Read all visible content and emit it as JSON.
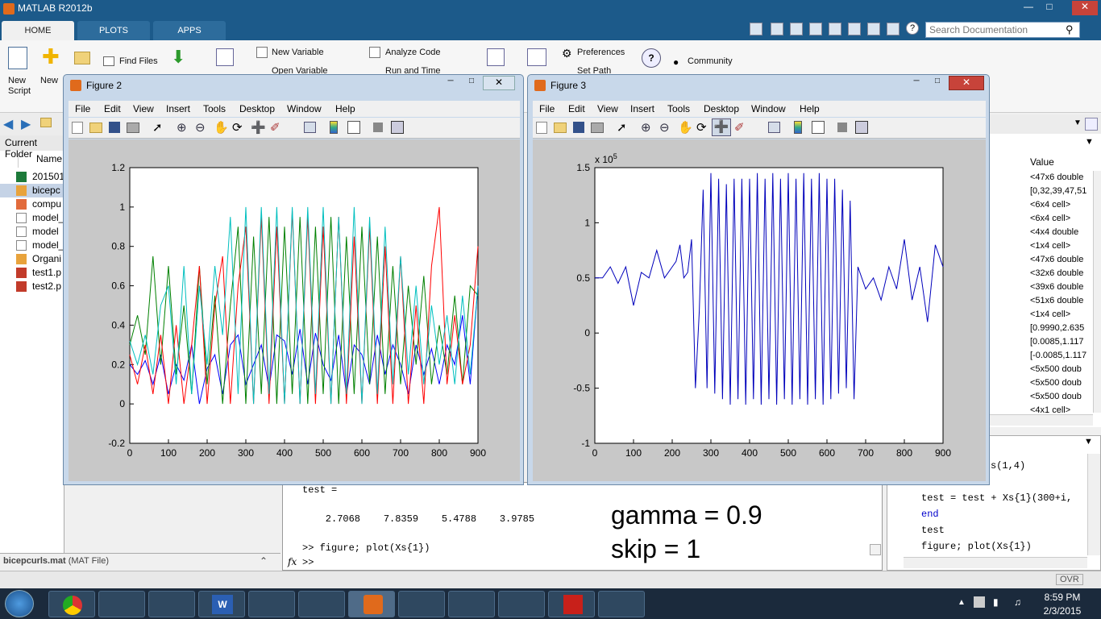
{
  "app": {
    "title": "MATLAB R2012b"
  },
  "tabs": [
    "HOME",
    "PLOTS",
    "APPS"
  ],
  "search": {
    "placeholder": "Search Documentation"
  },
  "ribbon": {
    "new_script": "New Script",
    "new": "New",
    "find_files": "Find Files",
    "new_variable": "New Variable",
    "open_variable": "Open Variable",
    "analyze_code": "Analyze Code",
    "run_and_time": "Run and Time",
    "preferences": "Preferences",
    "set_path": "Set Path",
    "community": "Community"
  },
  "current_folder": {
    "title": "Current Folder",
    "column": "Name",
    "items": [
      "201501",
      "bicepc",
      "compu",
      "model_",
      "model",
      "model_",
      "Organi",
      "test1.p",
      "test2.p"
    ]
  },
  "details": {
    "file": "bicepcurls.mat",
    "type": "(MAT File)"
  },
  "command_window": {
    "line1": "test =",
    "line2": "    2.7068    7.8359    5.4788    3.9785",
    "line3": ">> figure; plot(Xs{1})",
    "prompt": ">>",
    "fx": "fx"
  },
  "note": {
    "line1": "gamma = 0.9",
    "line2": "skip = 1"
  },
  "workspace": {
    "header": "Value",
    "values": [
      "<47x6 double",
      "[0,32,39,47,51",
      "<6x4 cell>",
      "<6x4 cell>",
      "<4x4 double",
      "<1x4 cell>",
      "<47x6 double",
      "<32x6 double",
      "<39x6 double",
      "<51x6 double",
      "<1x4 cell>",
      "[0.9990,2.635",
      "[0.0085,1.117",
      "[-0.0085,1.117",
      "<5x500 doub",
      "<5x500 doub",
      "<5x500 doub",
      "<4x1 cell>"
    ]
  },
  "history": {
    "lines": [
      "s(1,4)",
      "test = test + Xs{1}(300+i,",
      "end",
      "test",
      "figure; plot(Xs{1})"
    ]
  },
  "status": {
    "ovr": "OVR"
  },
  "clock": {
    "time": "8:59 PM",
    "date": "2/3/2015"
  },
  "figure_menu": [
    "File",
    "Edit",
    "View",
    "Insert",
    "Tools",
    "Desktop",
    "Window",
    "Help"
  ],
  "figure2": {
    "title": "Figure 2"
  },
  "figure3": {
    "title": "Figure 3"
  },
  "chart_data": [
    {
      "type": "line",
      "title": "",
      "xlabel": "",
      "ylabel": "",
      "xlim": [
        0,
        900
      ],
      "ylim": [
        -0.2,
        1.2
      ],
      "xticks": [
        0,
        100,
        200,
        300,
        400,
        500,
        600,
        700,
        800,
        900
      ],
      "yticks": [
        -0.2,
        0,
        0.2,
        0.4,
        0.6,
        0.8,
        1,
        1.2
      ],
      "series": [
        {
          "color": "#0000ff",
          "x": [
            0,
            20,
            40,
            60,
            80,
            100,
            120,
            140,
            160,
            180,
            200,
            220,
            240,
            260,
            280,
            300,
            320,
            340,
            360,
            380,
            400,
            420,
            440,
            460,
            480,
            500,
            520,
            540,
            560,
            580,
            600,
            620,
            640,
            660,
            680,
            700,
            720,
            740,
            760,
            780,
            800,
            820,
            840,
            860,
            880,
            900
          ],
          "y": [
            0.2,
            0.15,
            0.22,
            0.1,
            0.25,
            0.05,
            0.2,
            0.12,
            0.3,
            0,
            0.18,
            0.25,
            0.05,
            0.3,
            0.35,
            0.1,
            0.2,
            0.3,
            0.08,
            0.35,
            0.32,
            0.15,
            0.38,
            0.1,
            0.36,
            0.2,
            0.12,
            0.35,
            0.05,
            0.3,
            0.25,
            0.1,
            0.35,
            0.15,
            0.3,
            0.2,
            0.05,
            0.3,
            0.15,
            0.28,
            0.1,
            0.3,
            0.2,
            0.45,
            0.1,
            0.6
          ]
        },
        {
          "color": "#008000",
          "x": [
            0,
            20,
            40,
            60,
            80,
            100,
            120,
            140,
            160,
            180,
            200,
            220,
            240,
            260,
            280,
            300,
            320,
            340,
            360,
            380,
            400,
            420,
            440,
            460,
            480,
            500,
            520,
            540,
            560,
            580,
            600,
            620,
            640,
            660,
            680,
            700,
            720,
            740,
            760,
            780,
            800,
            820,
            840,
            860,
            880,
            900
          ],
          "y": [
            0.3,
            0.45,
            0.25,
            0.75,
            0.2,
            0.7,
            0.15,
            0.5,
            0.05,
            0.7,
            0.1,
            0.55,
            0,
            0.5,
            0.9,
            0,
            0.85,
            0.05,
            0.95,
            0,
            0.9,
            0.05,
            0.95,
            0,
            0.9,
            0.05,
            0.95,
            0,
            0.85,
            0.05,
            0.9,
            0.1,
            0.85,
            0.05,
            0.7,
            0.1,
            0.6,
            0.2,
            0.65,
            0.1,
            0.4,
            0.15,
            0.55,
            0.1,
            0.6,
            0.55
          ]
        },
        {
          "color": "#ff0000",
          "x": [
            0,
            20,
            40,
            60,
            80,
            100,
            120,
            140,
            160,
            180,
            200,
            220,
            240,
            260,
            280,
            300,
            320,
            340,
            360,
            380,
            400,
            420,
            440,
            460,
            480,
            500,
            520,
            540,
            560,
            580,
            600,
            620,
            640,
            660,
            680,
            700,
            720,
            740,
            760,
            780,
            800,
            820,
            840,
            860,
            880,
            900
          ],
          "y": [
            0.25,
            0.1,
            0.3,
            0.05,
            0.35,
            0,
            0.4,
            0,
            0.3,
            0.7,
            0,
            0.5,
            0.75,
            0,
            0.6,
            0.9,
            0,
            0.95,
            0,
            0.9,
            0,
            0.98,
            0,
            0.95,
            0,
            0.9,
            0,
            0.95,
            0,
            0.85,
            0,
            0.9,
            0,
            0.8,
            0,
            0.75,
            0,
            0.5,
            0,
            0.7,
            1,
            0.1,
            0.45,
            0.1,
            0.3,
            0.8
          ]
        },
        {
          "color": "#00bfbf",
          "x": [
            0,
            20,
            40,
            60,
            80,
            100,
            120,
            140,
            160,
            180,
            200,
            220,
            240,
            260,
            280,
            300,
            320,
            340,
            360,
            380,
            400,
            420,
            440,
            460,
            480,
            500,
            520,
            540,
            560,
            580,
            600,
            620,
            640,
            660,
            680,
            700,
            720,
            740,
            760,
            780,
            800,
            820,
            840,
            860,
            880,
            900
          ],
          "y": [
            0.32,
            0.2,
            0.35,
            0.15,
            0.5,
            0.6,
            0.1,
            0.7,
            0.05,
            0.6,
            0.2,
            0.7,
            0.35,
            0.95,
            0.05,
            1,
            0,
            1,
            0.05,
            1,
            0,
            1,
            0,
            1,
            0.05,
            1,
            0,
            0.95,
            0.05,
            1,
            0,
            0.95,
            0.05,
            0.9,
            0.1,
            0.75,
            0.15,
            0.6,
            0.1,
            0.5,
            0.2,
            0.45,
            0.1,
            0.55,
            0.15,
            0.6
          ]
        }
      ]
    },
    {
      "type": "line",
      "title": "",
      "xlabel": "",
      "ylabel": "",
      "exponent_label": "x 10^5",
      "xlim": [
        0,
        900
      ],
      "ylim": [
        -1,
        1.5
      ],
      "xticks": [
        0,
        100,
        200,
        300,
        400,
        500,
        600,
        700,
        800,
        900
      ],
      "yticks": [
        -1,
        -0.5,
        0,
        0.5,
        1,
        1.5
      ],
      "series": [
        {
          "color": "#0000bb",
          "x": [
            0,
            20,
            40,
            60,
            80,
            100,
            120,
            140,
            160,
            180,
            200,
            210,
            220,
            230,
            240,
            250,
            260,
            270,
            280,
            290,
            300,
            310,
            320,
            330,
            340,
            350,
            360,
            370,
            380,
            390,
            400,
            410,
            420,
            430,
            440,
            450,
            460,
            470,
            480,
            490,
            500,
            510,
            520,
            530,
            540,
            550,
            560,
            570,
            580,
            590,
            600,
            610,
            620,
            630,
            640,
            650,
            660,
            670,
            680,
            700,
            720,
            740,
            760,
            780,
            800,
            820,
            840,
            860,
            880,
            900
          ],
          "y": [
            0.5,
            0.5,
            0.6,
            0.45,
            0.6,
            0.25,
            0.55,
            0.5,
            0.75,
            0.5,
            0.6,
            0.65,
            0.8,
            0.5,
            0.55,
            0.85,
            -0.5,
            0.2,
            1.3,
            -0.5,
            1.45,
            -0.55,
            1.4,
            -0.6,
            1.35,
            -0.65,
            1.4,
            -0.6,
            1.4,
            -0.65,
            1.4,
            -0.6,
            1.45,
            -0.65,
            1.4,
            -0.6,
            1.45,
            -0.65,
            1.4,
            -0.6,
            1.45,
            -0.65,
            1.4,
            -0.6,
            1.45,
            -0.65,
            1.4,
            -0.6,
            1.45,
            -0.65,
            1.4,
            -0.6,
            1.4,
            -0.55,
            1.3,
            -0.5,
            1.2,
            -0.6,
            0.6,
            0.4,
            0.5,
            0.3,
            0.6,
            0.4,
            0.85,
            0.3,
            0.6,
            0.1,
            0.8,
            0.6
          ]
        }
      ]
    }
  ]
}
